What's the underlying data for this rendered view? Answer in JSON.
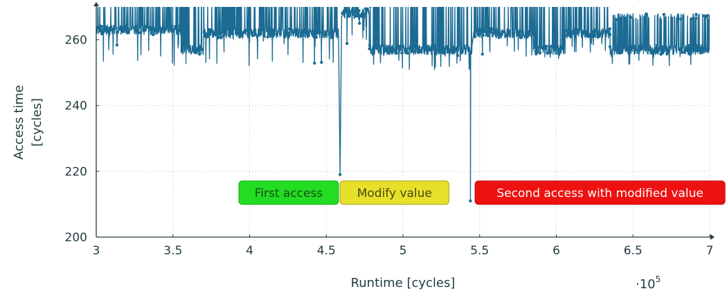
{
  "chart_data": {
    "type": "line",
    "xlabel": "Runtime [cycles]",
    "ylabel_lines": [
      "Access time",
      "[cycles]"
    ],
    "x_multiplier": "·10",
    "x_multiplier_exp": "5",
    "xlim": [
      3,
      7
    ],
    "ylim": [
      200,
      270
    ],
    "xticks": [
      "3",
      "3.5",
      "4",
      "4.5",
      "5",
      "5.5",
      "6",
      "6.5",
      "7"
    ],
    "yticks": [
      "200",
      "220",
      "240",
      "260"
    ],
    "grid": true,
    "line_color": "#1b6b93",
    "segments": [
      {
        "x0": 3.0,
        "x1": 3.6,
        "base": 263,
        "low": 252,
        "high": 270
      },
      {
        "x0": 3.55,
        "x1": 3.7,
        "base": 257,
        "low": 255,
        "high": 270
      },
      {
        "x0": 3.7,
        "x1": 4.58,
        "base": 262,
        "low": 252,
        "high": 270
      },
      {
        "x0": 4.6,
        "x1": 4.78,
        "base": 268,
        "low": 258,
        "high": 270
      },
      {
        "x0": 4.78,
        "x1": 5.45,
        "base": 257,
        "low": 250,
        "high": 270
      },
      {
        "x0": 5.46,
        "x1": 5.85,
        "base": 262,
        "low": 254,
        "high": 270
      },
      {
        "x0": 5.85,
        "x1": 6.05,
        "base": 257,
        "low": 254,
        "high": 270
      },
      {
        "x0": 6.05,
        "x1": 6.35,
        "base": 262,
        "low": 255,
        "high": 270
      },
      {
        "x0": 6.35,
        "x1": 7.0,
        "base": 257,
        "low": 252,
        "high": 266
      }
    ],
    "dips": [
      {
        "x": 4.59,
        "y": 219
      },
      {
        "x": 5.44,
        "y": 211
      }
    ],
    "annotations": [
      {
        "text": "First access",
        "x_start": 3.93,
        "x_end": 4.58,
        "y": 213.5,
        "fill": "#22dd22",
        "stroke": "#1aa51a",
        "text_color": "#1a4a1a"
      },
      {
        "text": "Modify value",
        "x_start": 4.59,
        "x_end": 5.3,
        "y": 213.5,
        "fill": "#e6e02a",
        "stroke": "#a8a41c",
        "text_color": "#4a4812"
      },
      {
        "text": "Second access with modified value",
        "x_start": 5.47,
        "x_end": 7.1,
        "y": 213.5,
        "fill": "#ee1111",
        "stroke": "#b80d0d",
        "text_color": "#ffffff"
      }
    ]
  }
}
